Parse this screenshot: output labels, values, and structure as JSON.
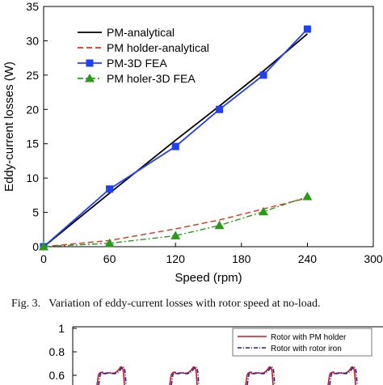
{
  "chart_data": [
    {
      "type": "line",
      "xlabel": "Speed (rpm)",
      "ylabel": "Eddy-current losses (W)",
      "xlim": [
        0,
        300
      ],
      "ylim": [
        0,
        35
      ],
      "xticks": [
        "0",
        "60",
        "120",
        "180",
        "240",
        "300"
      ],
      "yticks": [
        "0",
        "5",
        "10",
        "15",
        "20",
        "25",
        "30",
        "35"
      ],
      "grid": false,
      "legend_placement": "top-left",
      "series": [
        {
          "name": "PM-analytical",
          "color": "#000000",
          "style": "solid",
          "marker": "none",
          "x": [
            0,
            60,
            120,
            160,
            200,
            240
          ],
          "y": [
            0,
            7.8,
            15.5,
            20.5,
            25.6,
            31.0
          ]
        },
        {
          "name": "PM holder-analytical",
          "color": "#e0301e",
          "style": "dashed",
          "marker": "none",
          "x": [
            0,
            60,
            120,
            160,
            200,
            240
          ],
          "y": [
            0,
            0.9,
            2.6,
            3.9,
            5.5,
            7.1
          ]
        },
        {
          "name": "PM-3D FEA",
          "color": "#1f3fff",
          "style": "solid",
          "marker": "square",
          "x": [
            0,
            60,
            120,
            160,
            200,
            240
          ],
          "y": [
            0,
            8.4,
            14.6,
            20.0,
            25.0,
            31.7
          ]
        },
        {
          "name": "PM holer-3D FEA",
          "color": "#2a9a1a",
          "style": "dashdot",
          "marker": "triangle",
          "x": [
            0,
            60,
            120,
            160,
            200,
            240
          ],
          "y": [
            0,
            0.5,
            1.6,
            3.1,
            5.1,
            7.3
          ]
        }
      ]
    },
    {
      "type": "line",
      "partial": true,
      "yticks": [
        "1",
        "0.8",
        "0.6"
      ],
      "legend_placement": "top-right",
      "series": [
        {
          "name": "Rotor with PM holder",
          "color": "#d01818"
        },
        {
          "name": "Rotor with rotor iron",
          "color": "#1a1aa8"
        }
      ]
    }
  ],
  "caption": {
    "label": "Fig. 3.",
    "text": "Variation of eddy-current losses with rotor speed at no-load."
  }
}
